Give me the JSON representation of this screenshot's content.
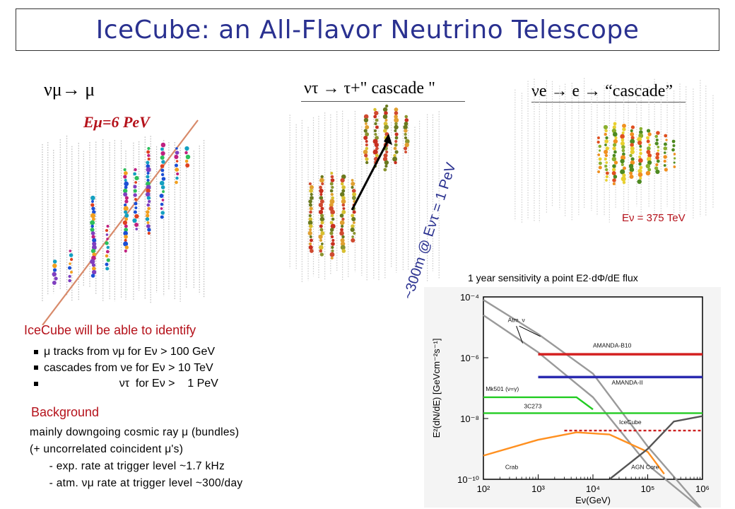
{
  "title": "IceCube:  an All-Flavor Neutrino Telescope",
  "panel_muon": {
    "label": "νμ→ μ",
    "energy": "Eμ=6 PeV"
  },
  "panel_tau": {
    "label": "ντ → τ+\" cascade \"",
    "arrow_label": "~300m @ Eντ = 1 PeV"
  },
  "panel_e": {
    "label": "νe → e → “cascade”",
    "energy": "Eν = 375 TeV"
  },
  "identify": {
    "heading": "IceCube will be able to identify",
    "items": [
      "μ tracks from    νμ  for Eν > 100 GeV",
      "cascades from  νe  for Eν >   10 TeV",
      "                        ντ  for Eν >    1 PeV"
    ]
  },
  "background": {
    "heading": "Background",
    "lines": [
      "mainly downgoing cosmic ray μ (bundles)",
      "(+ uncorrelated coincident μ's)",
      "      - exp. rate at trigger level ~1.7 kHz",
      "      - atm. νμ rate at trigger level ~300/day"
    ]
  },
  "sensitivity_caption": "1 year sensitivity a point E2·dΦ/dE flux",
  "chart_data": {
    "type": "line",
    "xlabel": "Eν(GeV)",
    "ylabel": "E²(dN/dE)   [GeVcm⁻²s⁻¹]",
    "x_scale": "log",
    "y_scale": "log",
    "xlim": [
      100,
      1000000
    ],
    "ylim": [
      1e-10,
      0.0001
    ],
    "x_ticks": [
      "10²",
      "10³",
      "10⁴",
      "10⁵",
      "10⁶"
    ],
    "y_ticks": [
      "10⁻⁴",
      "10⁻⁶",
      "10⁻⁸",
      "10⁻¹⁰"
    ],
    "series": [
      {
        "name": "Atm. ν",
        "color": "#9a9a9a",
        "points": [
          [
            100,
            8e-05
          ],
          [
            1000,
            6e-06
          ],
          [
            10000,
            3e-07
          ],
          [
            100000,
            1.2e-09
          ],
          [
            1000000,
            1e-11
          ]
        ]
      },
      {
        "name": "",
        "color": "#9a9a9a",
        "points": [
          [
            100,
            2.5e-05
          ],
          [
            1000,
            1.5e-06
          ],
          [
            10000,
            5e-08
          ],
          [
            100000,
            3e-10
          ],
          [
            1000000,
            1e-11
          ]
        ]
      },
      {
        "name": "AMANDA-B10",
        "color": "#d42020",
        "points": [
          [
            1000,
            1.3e-06
          ],
          [
            1000000,
            1.3e-06
          ]
        ]
      },
      {
        "name": "AMANDA-II",
        "color": "#2b2bb0",
        "points": [
          [
            1000,
            2.3e-07
          ],
          [
            1000000,
            2.3e-07
          ]
        ]
      },
      {
        "name": "Mk501 (ν=γ)",
        "color": "#22cc22",
        "points": [
          [
            100,
            5e-08
          ],
          [
            5000,
            5e-08
          ],
          [
            10000,
            2e-08
          ]
        ]
      },
      {
        "name": "3C273",
        "color": "#22cc22",
        "points": [
          [
            100,
            1.5e-08
          ],
          [
            1000000,
            1.5e-08
          ]
        ]
      },
      {
        "name": "IceCube",
        "color": "#cc2020",
        "points": [
          [
            3000,
            4e-09
          ],
          [
            1000000,
            4e-09
          ]
        ]
      },
      {
        "name": "Crab",
        "color": "#ff9020",
        "points": [
          [
            100,
            6e-10
          ],
          [
            1000,
            2e-09
          ],
          [
            5000,
            3.5e-09
          ],
          [
            20000,
            3e-09
          ],
          [
            100000,
            8e-10
          ],
          [
            200000,
            1.5e-10
          ]
        ]
      },
      {
        "name": "AGN Core",
        "color": "#555555",
        "points": [
          [
            20000,
            1e-10
          ],
          [
            100000,
            1e-09
          ],
          [
            300000,
            8e-09
          ],
          [
            1000000,
            1.2e-08
          ]
        ]
      }
    ]
  }
}
